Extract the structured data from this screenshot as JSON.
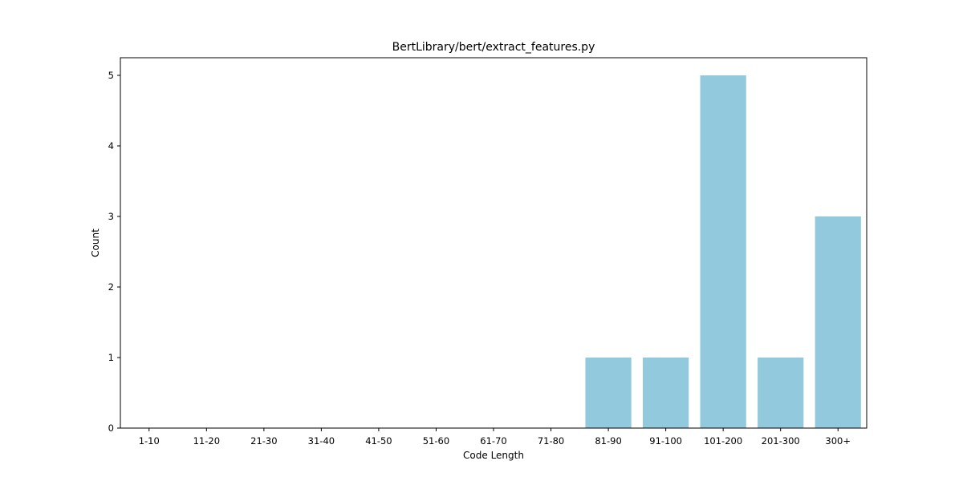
{
  "chart_data": {
    "type": "bar",
    "title": "BertLibrary/bert/extract_features.py",
    "xlabel": "Code Length",
    "ylabel": "Count",
    "categories": [
      "1-10",
      "11-20",
      "21-30",
      "31-40",
      "41-50",
      "51-60",
      "61-70",
      "71-80",
      "81-90",
      "91-100",
      "101-200",
      "201-300",
      "300+"
    ],
    "values": [
      0,
      0,
      0,
      0,
      0,
      0,
      0,
      0,
      1,
      1,
      5,
      1,
      3
    ],
    "ylim": [
      0,
      5.25
    ],
    "yticks": [
      0,
      1,
      2,
      3,
      4,
      5
    ],
    "bar_color": "#92c9dd",
    "grid": false,
    "legend": "none"
  }
}
